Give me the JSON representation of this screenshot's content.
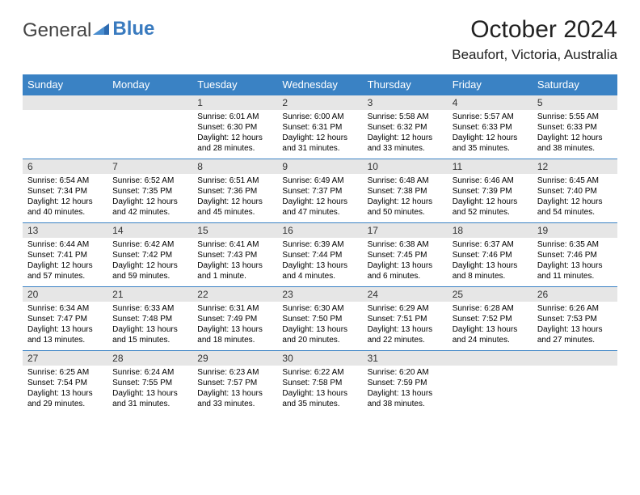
{
  "logo": {
    "text1": "General",
    "text2": "Blue"
  },
  "title": "October 2024",
  "location": "Beaufort, Victoria, Australia",
  "colors": {
    "header_bg": "#3a82c4",
    "header_text": "#ffffff",
    "daynum_bg": "#e6e6e6",
    "row_border": "#3a82c4",
    "logo_blue": "#3a7bbf"
  },
  "weekdays": [
    "Sunday",
    "Monday",
    "Tuesday",
    "Wednesday",
    "Thursday",
    "Friday",
    "Saturday"
  ],
  "weeks": [
    [
      {
        "day": "",
        "lines": []
      },
      {
        "day": "",
        "lines": []
      },
      {
        "day": "1",
        "lines": [
          "Sunrise: 6:01 AM",
          "Sunset: 6:30 PM",
          "Daylight: 12 hours",
          "and 28 minutes."
        ]
      },
      {
        "day": "2",
        "lines": [
          "Sunrise: 6:00 AM",
          "Sunset: 6:31 PM",
          "Daylight: 12 hours",
          "and 31 minutes."
        ]
      },
      {
        "day": "3",
        "lines": [
          "Sunrise: 5:58 AM",
          "Sunset: 6:32 PM",
          "Daylight: 12 hours",
          "and 33 minutes."
        ]
      },
      {
        "day": "4",
        "lines": [
          "Sunrise: 5:57 AM",
          "Sunset: 6:33 PM",
          "Daylight: 12 hours",
          "and 35 minutes."
        ]
      },
      {
        "day": "5",
        "lines": [
          "Sunrise: 5:55 AM",
          "Sunset: 6:33 PM",
          "Daylight: 12 hours",
          "and 38 minutes."
        ]
      }
    ],
    [
      {
        "day": "6",
        "lines": [
          "Sunrise: 6:54 AM",
          "Sunset: 7:34 PM",
          "Daylight: 12 hours",
          "and 40 minutes."
        ]
      },
      {
        "day": "7",
        "lines": [
          "Sunrise: 6:52 AM",
          "Sunset: 7:35 PM",
          "Daylight: 12 hours",
          "and 42 minutes."
        ]
      },
      {
        "day": "8",
        "lines": [
          "Sunrise: 6:51 AM",
          "Sunset: 7:36 PM",
          "Daylight: 12 hours",
          "and 45 minutes."
        ]
      },
      {
        "day": "9",
        "lines": [
          "Sunrise: 6:49 AM",
          "Sunset: 7:37 PM",
          "Daylight: 12 hours",
          "and 47 minutes."
        ]
      },
      {
        "day": "10",
        "lines": [
          "Sunrise: 6:48 AM",
          "Sunset: 7:38 PM",
          "Daylight: 12 hours",
          "and 50 minutes."
        ]
      },
      {
        "day": "11",
        "lines": [
          "Sunrise: 6:46 AM",
          "Sunset: 7:39 PM",
          "Daylight: 12 hours",
          "and 52 minutes."
        ]
      },
      {
        "day": "12",
        "lines": [
          "Sunrise: 6:45 AM",
          "Sunset: 7:40 PM",
          "Daylight: 12 hours",
          "and 54 minutes."
        ]
      }
    ],
    [
      {
        "day": "13",
        "lines": [
          "Sunrise: 6:44 AM",
          "Sunset: 7:41 PM",
          "Daylight: 12 hours",
          "and 57 minutes."
        ]
      },
      {
        "day": "14",
        "lines": [
          "Sunrise: 6:42 AM",
          "Sunset: 7:42 PM",
          "Daylight: 12 hours",
          "and 59 minutes."
        ]
      },
      {
        "day": "15",
        "lines": [
          "Sunrise: 6:41 AM",
          "Sunset: 7:43 PM",
          "Daylight: 13 hours",
          "and 1 minute."
        ]
      },
      {
        "day": "16",
        "lines": [
          "Sunrise: 6:39 AM",
          "Sunset: 7:44 PM",
          "Daylight: 13 hours",
          "and 4 minutes."
        ]
      },
      {
        "day": "17",
        "lines": [
          "Sunrise: 6:38 AM",
          "Sunset: 7:45 PM",
          "Daylight: 13 hours",
          "and 6 minutes."
        ]
      },
      {
        "day": "18",
        "lines": [
          "Sunrise: 6:37 AM",
          "Sunset: 7:46 PM",
          "Daylight: 13 hours",
          "and 8 minutes."
        ]
      },
      {
        "day": "19",
        "lines": [
          "Sunrise: 6:35 AM",
          "Sunset: 7:46 PM",
          "Daylight: 13 hours",
          "and 11 minutes."
        ]
      }
    ],
    [
      {
        "day": "20",
        "lines": [
          "Sunrise: 6:34 AM",
          "Sunset: 7:47 PM",
          "Daylight: 13 hours",
          "and 13 minutes."
        ]
      },
      {
        "day": "21",
        "lines": [
          "Sunrise: 6:33 AM",
          "Sunset: 7:48 PM",
          "Daylight: 13 hours",
          "and 15 minutes."
        ]
      },
      {
        "day": "22",
        "lines": [
          "Sunrise: 6:31 AM",
          "Sunset: 7:49 PM",
          "Daylight: 13 hours",
          "and 18 minutes."
        ]
      },
      {
        "day": "23",
        "lines": [
          "Sunrise: 6:30 AM",
          "Sunset: 7:50 PM",
          "Daylight: 13 hours",
          "and 20 minutes."
        ]
      },
      {
        "day": "24",
        "lines": [
          "Sunrise: 6:29 AM",
          "Sunset: 7:51 PM",
          "Daylight: 13 hours",
          "and 22 minutes."
        ]
      },
      {
        "day": "25",
        "lines": [
          "Sunrise: 6:28 AM",
          "Sunset: 7:52 PM",
          "Daylight: 13 hours",
          "and 24 minutes."
        ]
      },
      {
        "day": "26",
        "lines": [
          "Sunrise: 6:26 AM",
          "Sunset: 7:53 PM",
          "Daylight: 13 hours",
          "and 27 minutes."
        ]
      }
    ],
    [
      {
        "day": "27",
        "lines": [
          "Sunrise: 6:25 AM",
          "Sunset: 7:54 PM",
          "Daylight: 13 hours",
          "and 29 minutes."
        ]
      },
      {
        "day": "28",
        "lines": [
          "Sunrise: 6:24 AM",
          "Sunset: 7:55 PM",
          "Daylight: 13 hours",
          "and 31 minutes."
        ]
      },
      {
        "day": "29",
        "lines": [
          "Sunrise: 6:23 AM",
          "Sunset: 7:57 PM",
          "Daylight: 13 hours",
          "and 33 minutes."
        ]
      },
      {
        "day": "30",
        "lines": [
          "Sunrise: 6:22 AM",
          "Sunset: 7:58 PM",
          "Daylight: 13 hours",
          "and 35 minutes."
        ]
      },
      {
        "day": "31",
        "lines": [
          "Sunrise: 6:20 AM",
          "Sunset: 7:59 PM",
          "Daylight: 13 hours",
          "and 38 minutes."
        ]
      },
      {
        "day": "",
        "lines": []
      },
      {
        "day": "",
        "lines": []
      }
    ]
  ]
}
